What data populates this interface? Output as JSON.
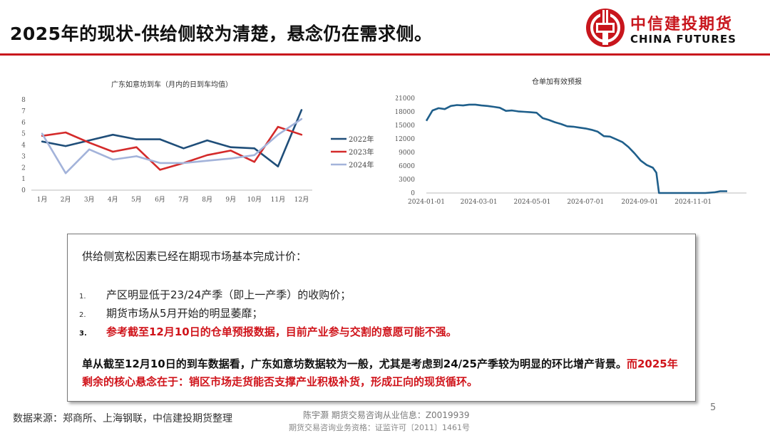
{
  "header": {
    "title": "2025年的现状-供给侧较为清楚，悬念仍在需求侧。"
  },
  "brand": {
    "name_cn": "中信建投期货",
    "name_en": "CHINA FUTURES",
    "mark_color": "#c8161d"
  },
  "chart_data": [
    {
      "type": "line",
      "title": "广东如意坊到车（月内的日到车均值）",
      "categories": [
        "1月",
        "2月",
        "3月",
        "4月",
        "5月",
        "6月",
        "7月",
        "8月",
        "9月",
        "10月",
        "11月",
        "12月"
      ],
      "ylim": [
        0,
        8
      ],
      "yticks": [
        "0",
        "1",
        "2",
        "3",
        "4",
        "5",
        "6",
        "7",
        "8"
      ],
      "legend_position": "right",
      "grid": false,
      "series": [
        {
          "name": "2022年",
          "color": "#1f4e79",
          "values": [
            4.3,
            3.9,
            4.4,
            4.9,
            4.5,
            4.5,
            3.7,
            4.4,
            3.8,
            3.7,
            2.1,
            7.1
          ]
        },
        {
          "name": "2023年",
          "color": "#d42a2a",
          "values": [
            4.8,
            5.1,
            4.2,
            3.4,
            3.8,
            1.8,
            2.4,
            3.1,
            3.5,
            2.5,
            5.6,
            4.9
          ]
        },
        {
          "name": "2024年",
          "color": "#a3b3da",
          "values": [
            5.0,
            1.5,
            3.6,
            2.7,
            3.0,
            2.4,
            2.4,
            2.6,
            2.8,
            3.1,
            4.9,
            6.3
          ]
        }
      ]
    },
    {
      "type": "line",
      "title": "仓单加有效预报",
      "x_ticks": [
        "2024-01-01",
        "2024-03-01",
        "2024-05-01",
        "2024-07-01",
        "2024-09-01",
        "2024-11-01"
      ],
      "x_range": [
        "2024-01-01",
        "2024-12-10"
      ],
      "ylim": [
        0,
        21000
      ],
      "yticks": [
        "0",
        "3000",
        "6000",
        "9000",
        "12000",
        "15000",
        "18000",
        "21000"
      ],
      "grid": false,
      "series": [
        {
          "name": "",
          "color": "#1f5f8b",
          "points": [
            [
              "2024-01-01",
              16000
            ],
            [
              "2024-01-08",
              18300
            ],
            [
              "2024-01-15",
              18800
            ],
            [
              "2024-01-22",
              18600
            ],
            [
              "2024-01-29",
              19300
            ],
            [
              "2024-02-05",
              19500
            ],
            [
              "2024-02-12",
              19400
            ],
            [
              "2024-02-19",
              19600
            ],
            [
              "2024-02-26",
              19600
            ],
            [
              "2024-03-04",
              19400
            ],
            [
              "2024-03-11",
              19300
            ],
            [
              "2024-03-18",
              19100
            ],
            [
              "2024-03-25",
              18900
            ],
            [
              "2024-04-01",
              18200
            ],
            [
              "2024-04-08",
              18300
            ],
            [
              "2024-04-15",
              18100
            ],
            [
              "2024-04-22",
              18000
            ],
            [
              "2024-04-29",
              17900
            ],
            [
              "2024-05-06",
              17800
            ],
            [
              "2024-05-13",
              16600
            ],
            [
              "2024-05-20",
              16200
            ],
            [
              "2024-05-27",
              15700
            ],
            [
              "2024-06-03",
              15300
            ],
            [
              "2024-06-10",
              14800
            ],
            [
              "2024-06-17",
              14700
            ],
            [
              "2024-06-24",
              14500
            ],
            [
              "2024-07-01",
              14300
            ],
            [
              "2024-07-08",
              14000
            ],
            [
              "2024-07-15",
              13600
            ],
            [
              "2024-07-22",
              12600
            ],
            [
              "2024-07-29",
              12500
            ],
            [
              "2024-08-05",
              11900
            ],
            [
              "2024-08-12",
              11300
            ],
            [
              "2024-08-19",
              10200
            ],
            [
              "2024-08-26",
              8800
            ],
            [
              "2024-09-02",
              7200
            ],
            [
              "2024-09-09",
              6200
            ],
            [
              "2024-09-16",
              5600
            ],
            [
              "2024-09-20",
              4500
            ],
            [
              "2024-09-23",
              0
            ],
            [
              "2024-10-15",
              0
            ],
            [
              "2024-11-15",
              0
            ],
            [
              "2024-11-25",
              150
            ],
            [
              "2024-12-02",
              400
            ],
            [
              "2024-12-10",
              400
            ]
          ]
        }
      ]
    }
  ],
  "textbox": {
    "intro": "供给侧宽松因素已经在期现市场基本完成计价：",
    "items": [
      {
        "num": "1.",
        "text": "产区明显低于23/24产季（即上一产季）的收购价；"
      },
      {
        "num": "2.",
        "text": "期货市场从5月开始的明显萎靡；"
      },
      {
        "num": "3.",
        "text": "参考截至12月10日的仓单预报数据，目前产业参与交割的意愿可能不强。"
      }
    ],
    "para_black": "单从截至12月10日的到车数据看，广东如意坊数据较为一般，尤其是考虑到24/25产季较为明显的环比增产背景。",
    "para_red": "而2025年剩余的核心悬念在于：销区市场走货能否支撑产业积极补货，形成正向的现货循环。"
  },
  "footer": {
    "source": "数据来源：郑商所、上海钢联，中信建投期货整理",
    "analyst": "陈宇灏 期货交易咨询从业信息：Z0019939",
    "license": "期货交易咨询业务资格：证监许可〔2011〕1461号",
    "page": "5"
  }
}
